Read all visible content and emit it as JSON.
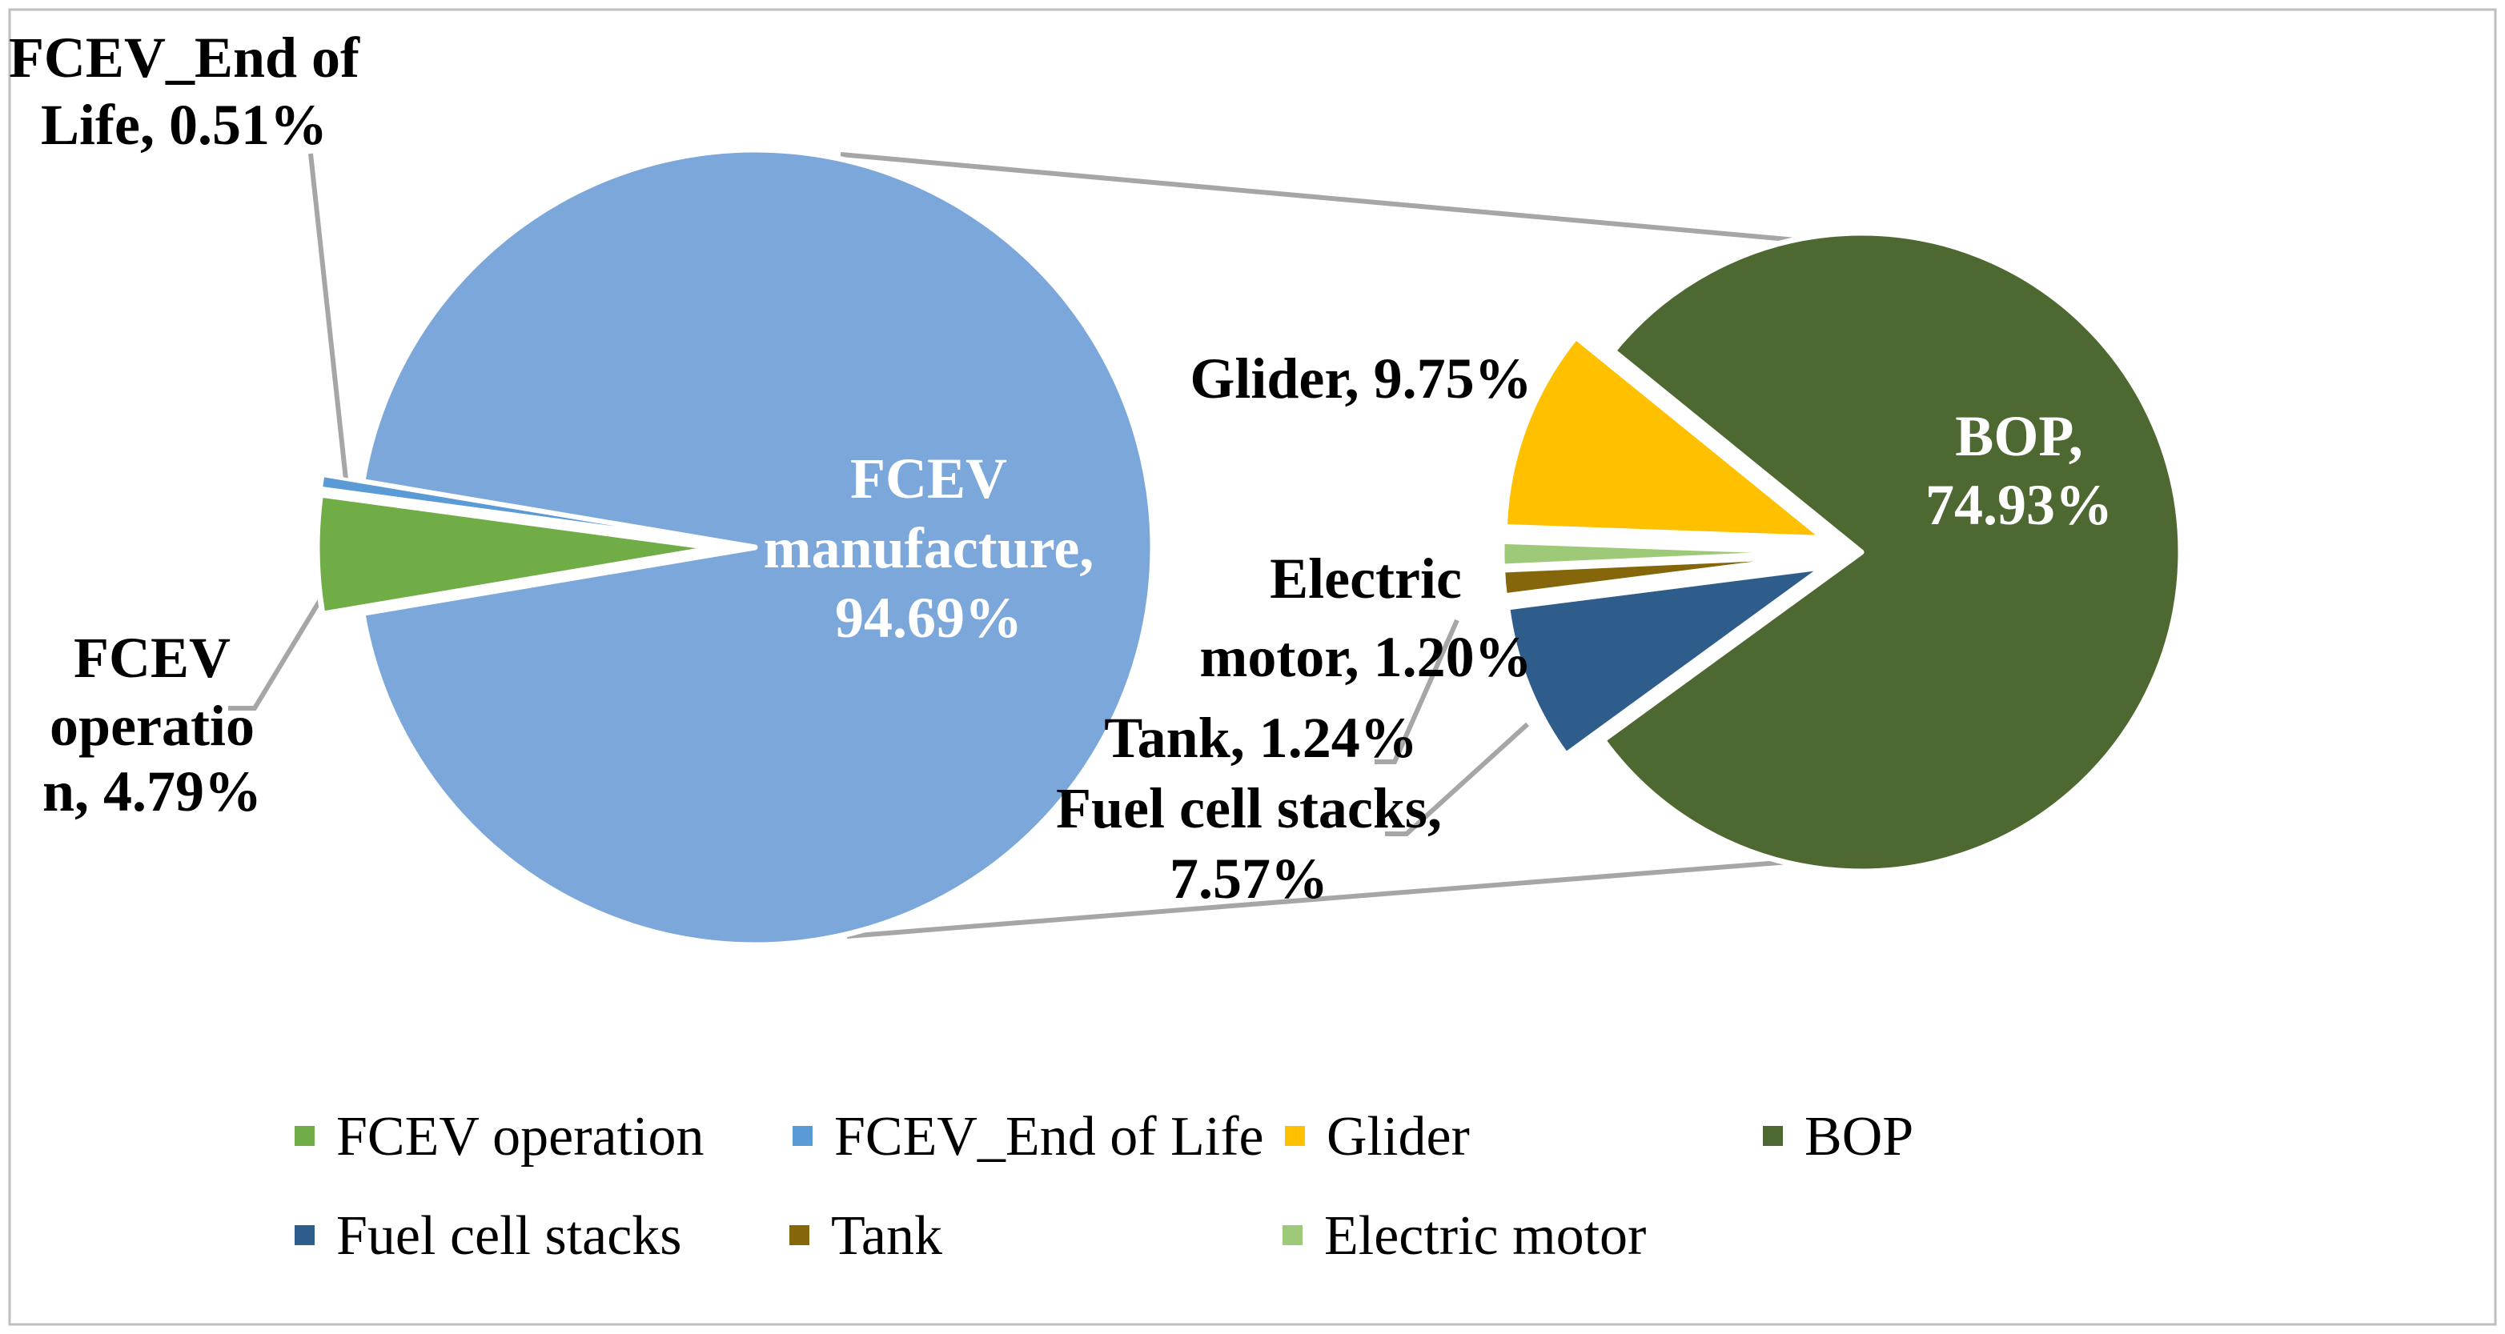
{
  "chart_data": {
    "type": "pie",
    "variant": "pie-of-pie",
    "title": "",
    "legend_position": "bottom",
    "colors": {
      "background": "#FFFFFF",
      "chart_border": "#BFBFBF",
      "leader_line": "#A6A6A6",
      "slice_border": "#FFFFFF",
      "label_text": "#000000",
      "label_text_inverse": "#FFFFFF"
    },
    "main_pie": {
      "slices": [
        {
          "id": "manufacture",
          "name": "FCEV manufacture",
          "value_pct": 94.69,
          "color": "#7CA7DB",
          "label_lines": [
            "FCEV",
            "manufacture,",
            "94.69%"
          ],
          "label_color": "#FFFFFF",
          "in_legend": false
        },
        {
          "id": "operation",
          "name": "FCEV operation",
          "value_pct": 4.79,
          "color": "#70AD47",
          "label_lines": [
            "FCEV",
            "operatio",
            "n, 4.79%"
          ],
          "label_color": "#000000",
          "in_legend": true
        },
        {
          "id": "eol",
          "name": "FCEV_End of Life",
          "value_pct": 0.51,
          "color": "#5B9BD5",
          "label_lines": [
            "FCEV_End of",
            "Life, 0.51%"
          ],
          "label_color": "#000000",
          "in_legend": true
        }
      ]
    },
    "secondary_pie": {
      "breakdown_of": "FCEV manufacture",
      "slices": [
        {
          "id": "glider",
          "name": "Glider",
          "value_pct": 9.75,
          "color": "#FFC000",
          "label_lines": [
            "Glider, 9.75%"
          ],
          "label_color": "#000000"
        },
        {
          "id": "bop",
          "name": "BOP",
          "value_pct": 74.93,
          "color": "#4D6931",
          "label_lines": [
            "BOP,",
            "74.93%"
          ],
          "label_color": "#FFFFFF"
        },
        {
          "id": "fcs",
          "name": "Fuel cell stacks",
          "value_pct": 7.57,
          "color": "#2E5D8C",
          "label_lines": [
            "Fuel cell stacks,",
            "7.57%"
          ],
          "label_color": "#000000"
        },
        {
          "id": "tank",
          "name": "Tank",
          "value_pct": 1.24,
          "color": "#85660A",
          "label_lines": [
            "Tank, 1.24%"
          ],
          "label_color": "#000000"
        },
        {
          "id": "em",
          "name": "Electric motor",
          "value_pct": 1.2,
          "color": "#9DC978",
          "label_lines": [
            "Electric",
            "motor, 1.20%"
          ],
          "label_color": "#000000"
        }
      ]
    },
    "legend_order": [
      "operation",
      "eol",
      "glider",
      "bop",
      "fcs",
      "tank",
      "em"
    ]
  }
}
